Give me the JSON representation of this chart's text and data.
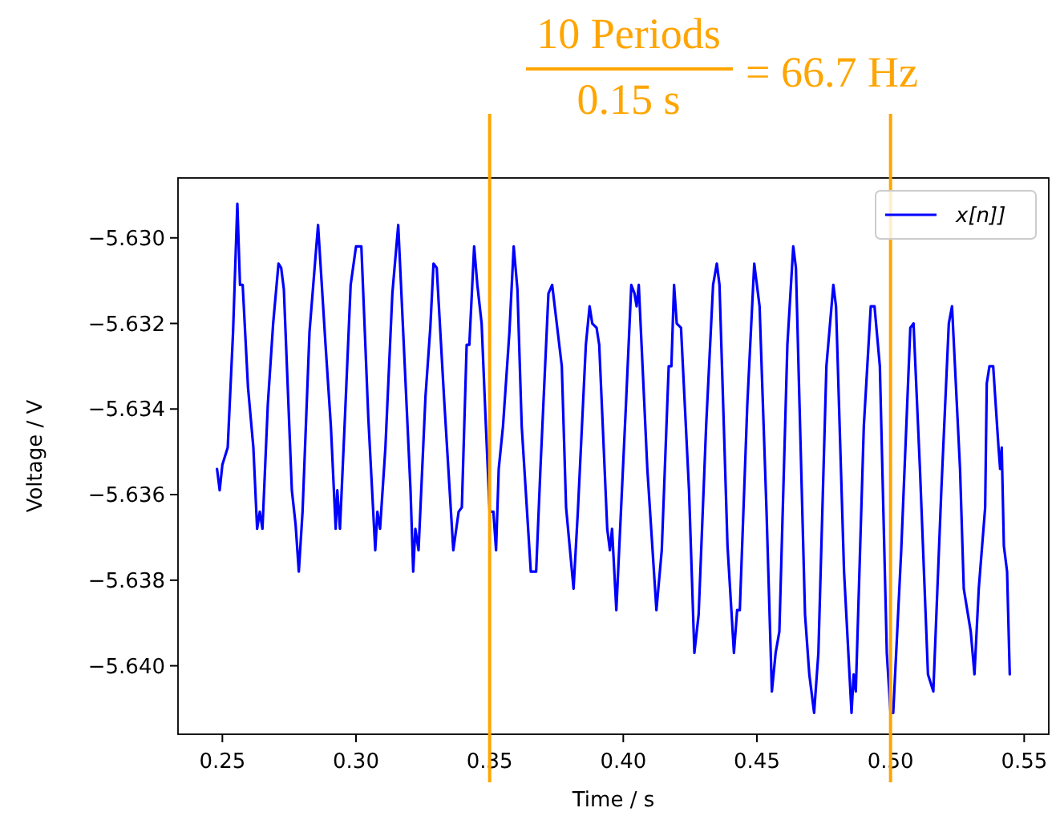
{
  "chart_data": {
    "type": "line",
    "xlabel": "Time / s",
    "ylabel": "Voltage / V",
    "xlim": [
      0.2334,
      0.5592
    ],
    "xticks": [
      {
        "value": 0.25,
        "label": "0.25"
      },
      {
        "value": 0.3,
        "label": "0.30"
      },
      {
        "value": 0.35,
        "label": "0.35"
      },
      {
        "value": 0.4,
        "label": "0.40"
      },
      {
        "value": 0.45,
        "label": "0.45"
      },
      {
        "value": 0.5,
        "label": "0.50"
      },
      {
        "value": 0.55,
        "label": "0.55"
      }
    ],
    "ylim": [
      -5.6416,
      -5.6286
    ],
    "yticks": [
      {
        "value": -5.64,
        "label": "−5.640"
      },
      {
        "value": -5.638,
        "label": "−5.638"
      },
      {
        "value": -5.636,
        "label": "−5.636"
      },
      {
        "value": -5.634,
        "label": "−5.634"
      },
      {
        "value": -5.632,
        "label": "−5.632"
      },
      {
        "value": -5.63,
        "label": "−5.630"
      }
    ],
    "legend": "top right",
    "grid": false,
    "marker": "none",
    "line_style": "solid",
    "annotations": [
      "10 Periods",
      "0.15 s",
      "= 66.7 Hz"
    ],
    "ref_lines": [
      {
        "axis": "x",
        "value": 0.35,
        "color": "#ffa500"
      },
      {
        "axis": "x",
        "value": 0.5,
        "color": "#ffa500"
      }
    ],
    "series": [
      {
        "name": "x[n]]",
        "color": "#0000ff",
        "x": [
          0.248,
          0.249,
          0.25,
          0.252,
          0.254,
          0.2556,
          0.2566,
          0.2576,
          0.2596,
          0.2616,
          0.263,
          0.264,
          0.265,
          0.267,
          0.269,
          0.271,
          0.272,
          0.273,
          0.276,
          0.2774,
          0.2786,
          0.28,
          0.2826,
          0.2858,
          0.2886,
          0.2906,
          0.2924,
          0.293,
          0.294,
          0.296,
          0.298,
          0.3,
          0.302,
          0.3046,
          0.3072,
          0.308,
          0.309,
          0.311,
          0.3136,
          0.3158,
          0.3184,
          0.3204,
          0.3214,
          0.3222,
          0.3234,
          0.326,
          0.3278,
          0.329,
          0.3302,
          0.333,
          0.3364,
          0.3384,
          0.3396,
          0.3414,
          0.3424,
          0.3442,
          0.3454,
          0.347,
          0.3486,
          0.35,
          0.3514,
          0.3524,
          0.3534,
          0.355,
          0.3574,
          0.359,
          0.3604,
          0.362,
          0.3654,
          0.3674,
          0.369,
          0.372,
          0.3734,
          0.377,
          0.3786,
          0.3814,
          0.383,
          0.386,
          0.3874,
          0.3884,
          0.39,
          0.391,
          0.394,
          0.395,
          0.3958,
          0.3974,
          0.401,
          0.403,
          0.4042,
          0.405,
          0.4058,
          0.409,
          0.4124,
          0.4144,
          0.417,
          0.418,
          0.419,
          0.42,
          0.4216,
          0.4246,
          0.4266,
          0.4282,
          0.431,
          0.4336,
          0.435,
          0.436,
          0.439,
          0.4414,
          0.4426,
          0.4436,
          0.4464,
          0.449,
          0.451,
          0.4536,
          0.4556,
          0.457,
          0.4584,
          0.4614,
          0.4636,
          0.4646,
          0.468,
          0.4696,
          0.4714,
          0.473,
          0.476,
          0.4786,
          0.4796,
          0.4826,
          0.4854,
          0.4862,
          0.487,
          0.49,
          0.4926,
          0.494,
          0.496,
          0.4986,
          0.5,
          0.501,
          0.504,
          0.5074,
          0.5086,
          0.511,
          0.514,
          0.516,
          0.519,
          0.5218,
          0.523,
          0.526,
          0.5274,
          0.53,
          0.5314,
          0.533,
          0.5354,
          0.536,
          0.537,
          0.5384,
          0.5404,
          0.541,
          0.5416,
          0.5424,
          0.5436,
          0.5446
        ],
        "values": [
          -5.6354,
          -5.6359,
          -5.6353,
          -5.6349,
          -5.6322,
          -5.6292,
          -5.6311,
          -5.6311,
          -5.6335,
          -5.6349,
          -5.6368,
          -5.6364,
          -5.6368,
          -5.6339,
          -5.632,
          -5.6306,
          -5.6307,
          -5.6312,
          -5.6359,
          -5.6367,
          -5.6378,
          -5.6364,
          -5.6322,
          -5.6297,
          -5.6325,
          -5.6344,
          -5.6368,
          -5.6359,
          -5.6368,
          -5.634,
          -5.6311,
          -5.6302,
          -5.6302,
          -5.6342,
          -5.6373,
          -5.6364,
          -5.6368,
          -5.6349,
          -5.6313,
          -5.6297,
          -5.6332,
          -5.6359,
          -5.6378,
          -5.6368,
          -5.6373,
          -5.6337,
          -5.6321,
          -5.6306,
          -5.6307,
          -5.6338,
          -5.6373,
          -5.6364,
          -5.6363,
          -5.6325,
          -5.6325,
          -5.6302,
          -5.6311,
          -5.632,
          -5.6344,
          -5.6364,
          -5.6364,
          -5.6373,
          -5.6354,
          -5.6344,
          -5.6322,
          -5.6302,
          -5.6312,
          -5.6344,
          -5.6378,
          -5.6378,
          -5.6354,
          -5.6313,
          -5.6311,
          -5.633,
          -5.6363,
          -5.6382,
          -5.6364,
          -5.6325,
          -5.6316,
          -5.632,
          -5.6321,
          -5.6325,
          -5.6368,
          -5.6373,
          -5.6368,
          -5.6387,
          -5.6339,
          -5.6311,
          -5.6313,
          -5.6316,
          -5.6311,
          -5.6354,
          -5.6387,
          -5.6373,
          -5.633,
          -5.633,
          -5.6311,
          -5.632,
          -5.6321,
          -5.6359,
          -5.6397,
          -5.6388,
          -5.6344,
          -5.6311,
          -5.6306,
          -5.6311,
          -5.6372,
          -5.6397,
          -5.6387,
          -5.6387,
          -5.6339,
          -5.6306,
          -5.6316,
          -5.6364,
          -5.6406,
          -5.6397,
          -5.6392,
          -5.6325,
          -5.6302,
          -5.6307,
          -5.6388,
          -5.6402,
          -5.6411,
          -5.6397,
          -5.633,
          -5.6311,
          -5.6316,
          -5.6378,
          -5.6411,
          -5.6402,
          -5.6406,
          -5.6344,
          -5.6316,
          -5.6316,
          -5.633,
          -5.6397,
          -5.6411,
          -5.6411,
          -5.6373,
          -5.6321,
          -5.632,
          -5.6354,
          -5.6402,
          -5.6406,
          -5.6359,
          -5.632,
          -5.6316,
          -5.6354,
          -5.6382,
          -5.6392,
          -5.6402,
          -5.6382,
          -5.6363,
          -5.6334,
          -5.633,
          -5.633,
          -5.6349,
          -5.6354,
          -5.6349,
          -5.6372,
          -5.6378,
          -5.6402
        ]
      }
    ]
  }
}
